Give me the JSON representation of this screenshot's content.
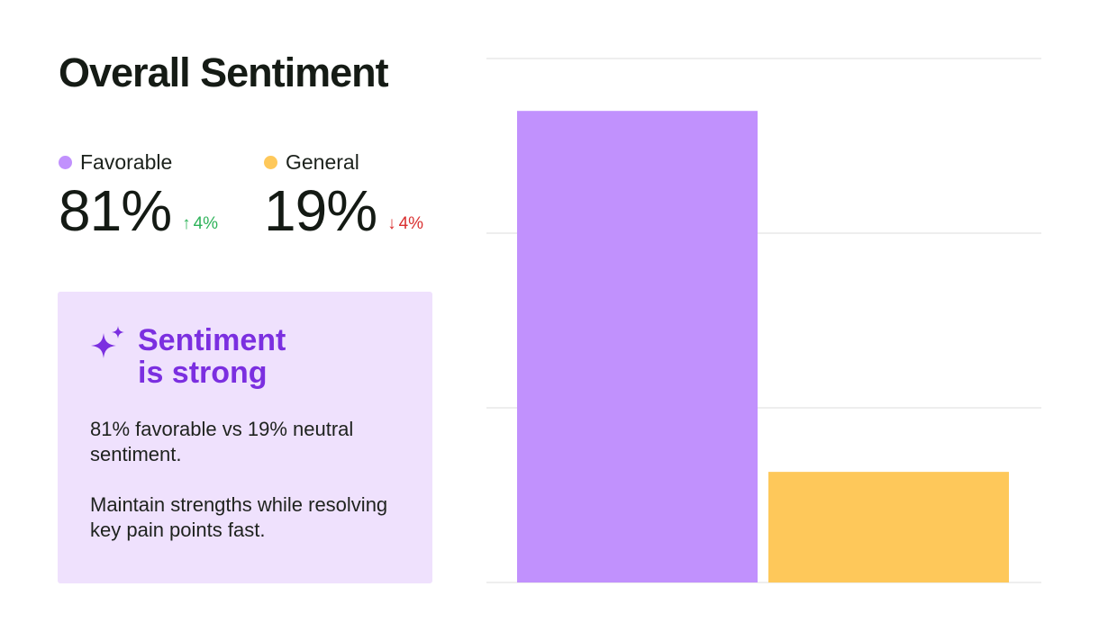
{
  "title": "Overall Sentiment",
  "stats": [
    {
      "label": "Favorable",
      "value": "81%",
      "delta": "4%",
      "direction": "up",
      "color": "#c191fd"
    },
    {
      "label": "General",
      "value": "19%",
      "delta": "4%",
      "direction": "down",
      "color": "#fec85a"
    }
  ],
  "insight": {
    "heading": "Sentiment is strong",
    "paragraph1": "81% favorable vs 19% neutral sentiment.",
    "paragraph2": "Maintain strengths while resolving key pain points fast."
  },
  "colors": {
    "accent": "#7b2fe0",
    "insight_bg": "#efe1fd",
    "up": "#2fb35a",
    "down": "#d93030",
    "gridline": "#e8e8e8"
  },
  "chart_data": {
    "type": "bar",
    "categories": [
      "Favorable",
      "General"
    ],
    "values": [
      81,
      19
    ],
    "colors": [
      "#c191fd",
      "#fec85a"
    ],
    "ylim": [
      0,
      90
    ],
    "gridlines": [
      0,
      30,
      60,
      90
    ],
    "grid": true,
    "title": "",
    "xlabel": "",
    "ylabel": ""
  }
}
